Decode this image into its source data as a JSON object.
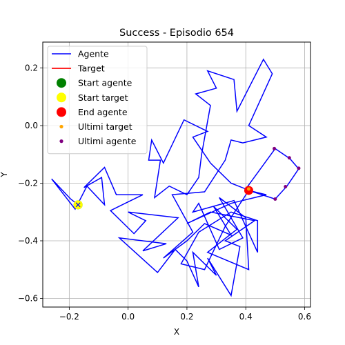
{
  "chart_data": {
    "type": "line",
    "title": "Success - Episodio 654",
    "xlabel": "X",
    "ylabel": "Y",
    "xlim": [
      -0.29,
      0.62
    ],
    "ylim": [
      -0.63,
      0.29
    ],
    "xticks": [
      -0.2,
      0.0,
      0.2,
      0.4,
      0.6
    ],
    "xtick_labels": [
      "−0.2",
      "0.0",
      "0.2",
      "0.4",
      "0.6"
    ],
    "yticks": [
      -0.6,
      -0.4,
      -0.2,
      0.0,
      0.2
    ],
    "ytick_labels": [
      "−0.6",
      "−0.4",
      "−0.2",
      "0.0",
      "0.2"
    ],
    "grid": true,
    "legend_position": "top-left",
    "legend": [
      {
        "label": "Agente",
        "kind": "line",
        "color": "#0000ff"
      },
      {
        "label": "Target",
        "kind": "line",
        "color": "#ff0000"
      },
      {
        "label": "Start agente",
        "kind": "marker",
        "color": "#008000",
        "size": "large"
      },
      {
        "label": "Start target",
        "kind": "marker",
        "color": "#ffff00",
        "size": "large"
      },
      {
        "label": "End agente",
        "kind": "marker",
        "color": "#ff0000",
        "size": "large"
      },
      {
        "label": "Ultimi target",
        "kind": "marker",
        "color": "#ffa500",
        "size": "small"
      },
      {
        "label": "Ultimi agente",
        "kind": "marker",
        "color": "#800080",
        "size": "small"
      }
    ],
    "series": [
      {
        "name": "Agente",
        "color": "#0000ff",
        "points": [
          [
            -0.17,
            -0.275
          ],
          [
            -0.195,
            -0.255
          ],
          [
            -0.26,
            -0.185
          ],
          [
            -0.18,
            -0.29
          ],
          [
            -0.14,
            -0.21
          ],
          [
            -0.08,
            -0.275
          ],
          [
            -0.09,
            -0.18
          ],
          [
            -0.15,
            -0.215
          ],
          [
            -0.08,
            -0.145
          ],
          [
            -0.04,
            -0.24
          ],
          [
            0.05,
            -0.24
          ],
          [
            -0.01,
            -0.27
          ],
          [
            -0.06,
            -0.295
          ],
          [
            0.02,
            -0.375
          ],
          [
            0.06,
            -0.33
          ],
          [
            0.0,
            -0.3
          ],
          [
            0.17,
            -0.32
          ],
          [
            0.05,
            -0.435
          ],
          [
            0.13,
            -0.41
          ],
          [
            -0.03,
            -0.39
          ],
          [
            0.1,
            -0.51
          ],
          [
            0.16,
            -0.43
          ],
          [
            0.2,
            -0.47
          ],
          [
            0.24,
            -0.56
          ],
          [
            0.22,
            -0.44
          ],
          [
            0.3,
            -0.52
          ],
          [
            0.27,
            -0.46
          ],
          [
            0.35,
            -0.59
          ],
          [
            0.38,
            -0.42
          ],
          [
            0.33,
            -0.4
          ],
          [
            0.43,
            -0.33
          ],
          [
            0.28,
            -0.3
          ],
          [
            0.2,
            -0.34
          ],
          [
            0.35,
            -0.27
          ],
          [
            0.47,
            -0.24
          ],
          [
            0.41,
            -0.225
          ],
          [
            0.5,
            -0.255
          ],
          [
            0.54,
            -0.21
          ],
          [
            0.58,
            -0.15
          ],
          [
            0.55,
            -0.115
          ],
          [
            0.5,
            -0.08
          ],
          [
            0.4,
            -0.22
          ],
          [
            0.35,
            -0.2
          ],
          [
            0.28,
            -0.13
          ],
          [
            0.22,
            -0.04
          ],
          [
            0.27,
            -0.02
          ],
          [
            0.19,
            0.02
          ],
          [
            0.12,
            -0.13
          ],
          [
            0.08,
            -0.05
          ],
          [
            0.07,
            -0.12
          ],
          [
            0.11,
            -0.12
          ],
          [
            0.09,
            -0.25
          ],
          [
            0.14,
            -0.21
          ],
          [
            0.2,
            -0.24
          ],
          [
            0.24,
            -0.18
          ],
          [
            0.25,
            -0.1
          ],
          [
            0.28,
            0.07
          ],
          [
            0.23,
            0.11
          ],
          [
            0.3,
            0.13
          ],
          [
            0.27,
            0.19
          ],
          [
            0.36,
            0.16
          ],
          [
            0.37,
            0.05
          ],
          [
            0.46,
            0.23
          ],
          [
            0.49,
            0.18
          ],
          [
            0.41,
            0.0
          ],
          [
            0.47,
            -0.04
          ],
          [
            0.39,
            -0.06
          ],
          [
            0.35,
            -0.05
          ],
          [
            0.33,
            -0.12
          ],
          [
            0.26,
            -0.23
          ],
          [
            0.15,
            -0.24
          ],
          [
            0.22,
            -0.37
          ],
          [
            0.12,
            -0.46
          ],
          [
            0.2,
            -0.4
          ],
          [
            0.26,
            -0.34
          ],
          [
            0.35,
            -0.38
          ],
          [
            0.29,
            -0.28
          ],
          [
            0.37,
            -0.36
          ],
          [
            0.27,
            -0.44
          ],
          [
            0.41,
            -0.5
          ],
          [
            0.4,
            -0.32
          ],
          [
            0.31,
            -0.25
          ],
          [
            0.39,
            -0.39
          ],
          [
            0.31,
            -0.43
          ],
          [
            0.24,
            -0.27
          ],
          [
            0.22,
            -0.3
          ],
          [
            0.36,
            -0.26
          ],
          [
            0.44,
            -0.44
          ],
          [
            0.44,
            -0.33
          ],
          [
            0.35,
            -0.3
          ],
          [
            0.24,
            -0.37
          ],
          [
            0.18,
            -0.48
          ],
          [
            0.26,
            -0.5
          ],
          [
            0.33,
            -0.35
          ],
          [
            0.41,
            -0.225
          ]
        ]
      }
    ],
    "markers": [
      {
        "name": "Start agente",
        "x": -0.17,
        "y": -0.275,
        "color": "#008000",
        "size": "large"
      },
      {
        "name": "Start target",
        "x": -0.17,
        "y": -0.275,
        "color": "#ffff00",
        "size": "large"
      },
      {
        "name": "End agente",
        "x": 0.41,
        "y": -0.225,
        "color": "#ff0000",
        "size": "large"
      },
      {
        "name": "Ultimi target",
        "x": 0.41,
        "y": -0.22,
        "color": "#ffa500",
        "size": "small"
      }
    ],
    "recent_agent_points": [
      [
        0.5,
        -0.255
      ],
      [
        0.535,
        -0.212
      ],
      [
        0.58,
        -0.148
      ],
      [
        0.548,
        -0.112
      ],
      [
        0.497,
        -0.08
      ]
    ]
  }
}
